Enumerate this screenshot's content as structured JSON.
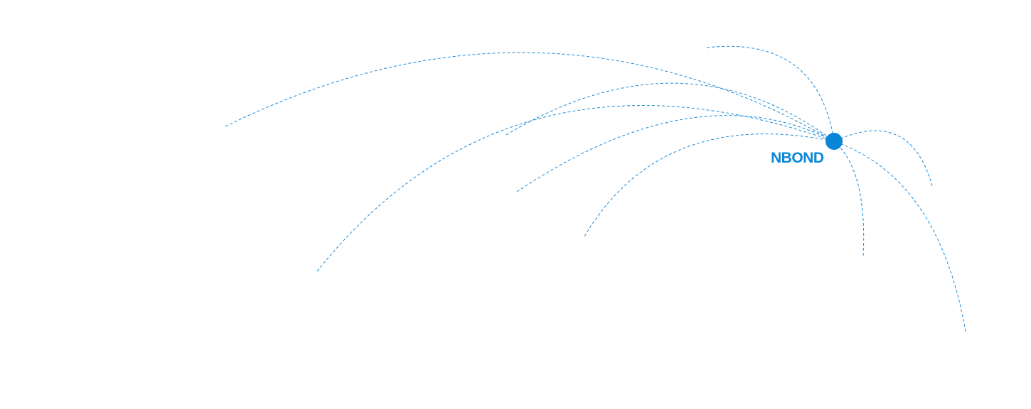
{
  "hub": {
    "label": "NBOND"
  },
  "colors": {
    "accent": "#0a86d8",
    "line": "#1a8ad8"
  },
  "connections": 9
}
